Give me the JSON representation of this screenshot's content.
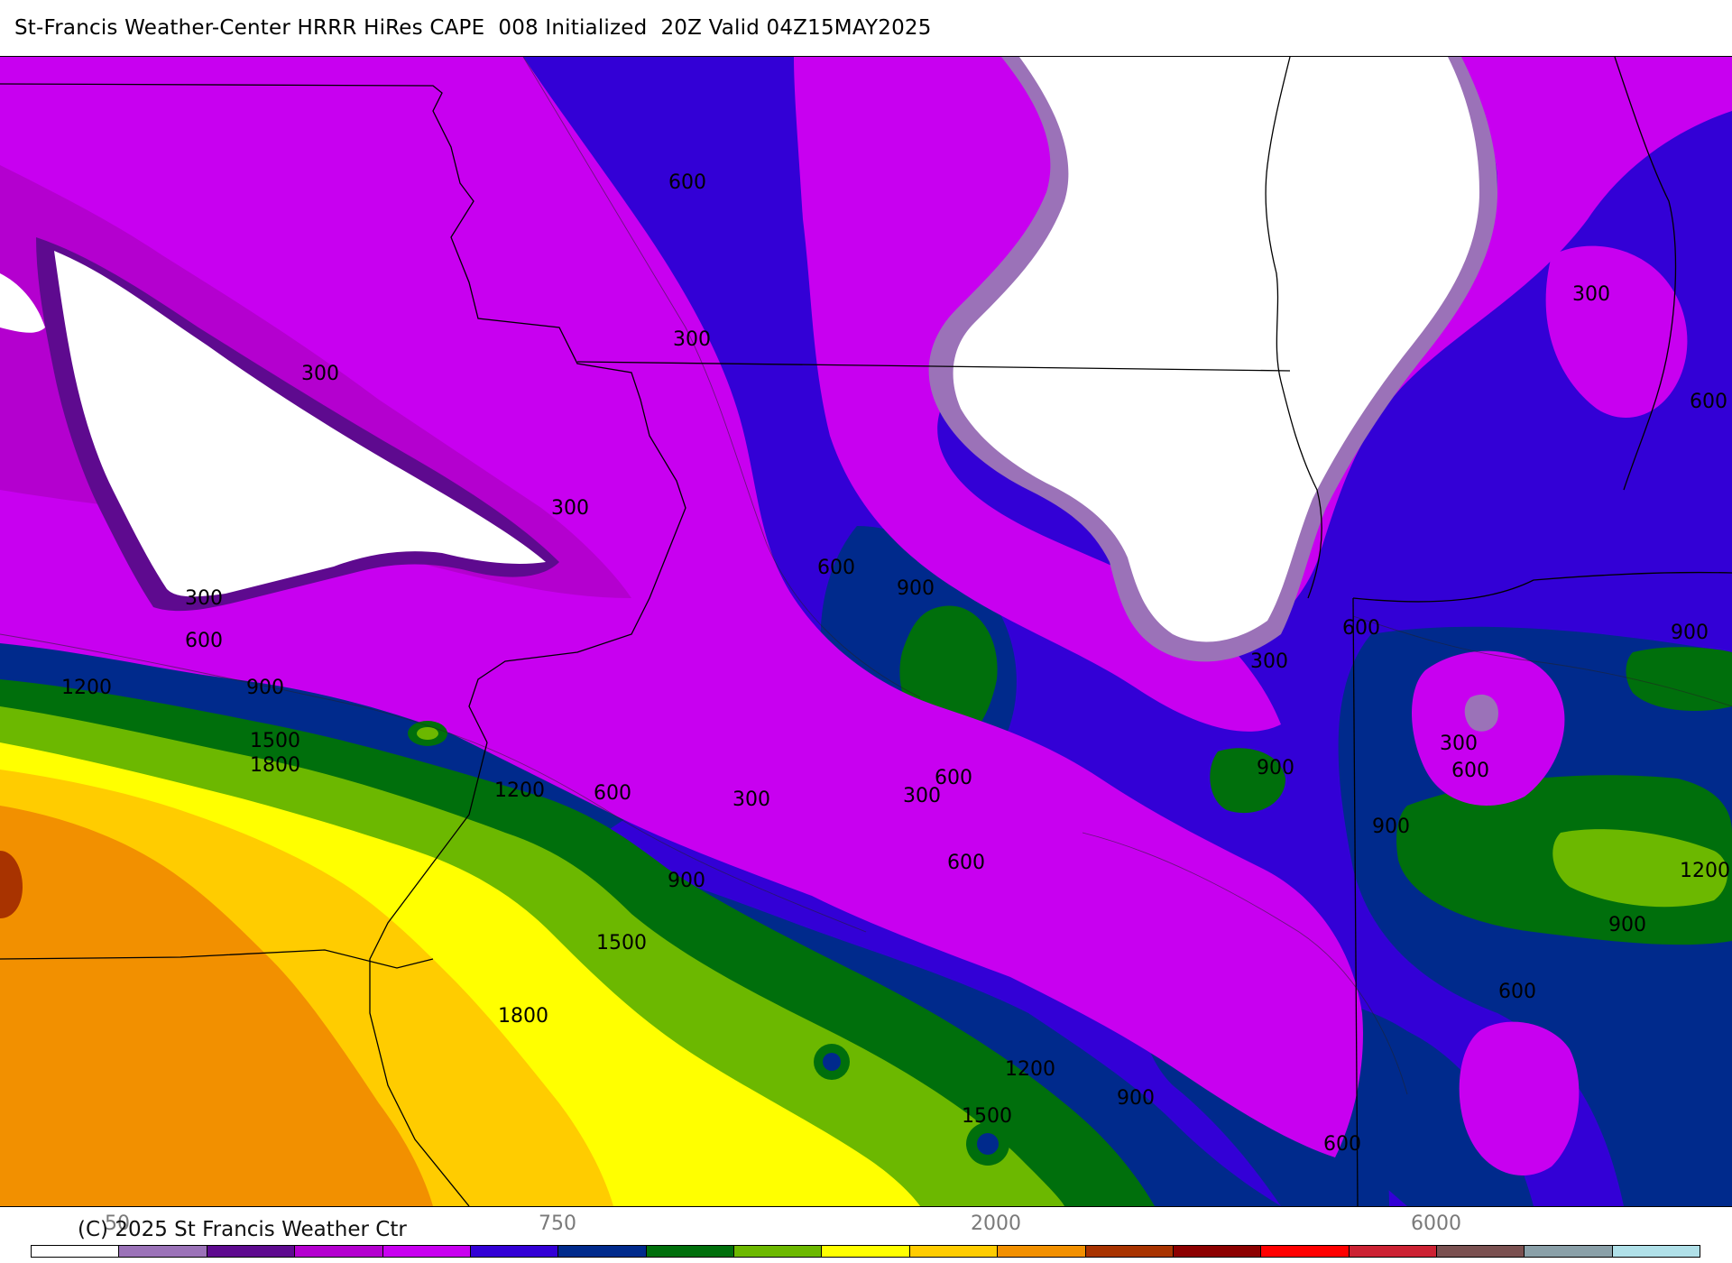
{
  "header": {
    "title": "St-Francis Weather-Center HRRR HiRes CAPE  008 Initialized  20Z Valid 04Z15MAY2025"
  },
  "footer": {
    "copyright": "(C) 2025 St Francis Weather Ctr"
  },
  "map": {
    "contour_labels": [
      {
        "text": "600"
      },
      {
        "text": "300"
      },
      {
        "text": "300"
      },
      {
        "text": "300"
      },
      {
        "text": "300"
      },
      {
        "text": "600"
      },
      {
        "text": "1200"
      },
      {
        "text": "900"
      },
      {
        "text": "1500"
      },
      {
        "text": "1800"
      },
      {
        "text": "1200"
      },
      {
        "text": "600"
      },
      {
        "text": "300"
      },
      {
        "text": "600"
      },
      {
        "text": "900"
      },
      {
        "text": "900"
      },
      {
        "text": "600"
      },
      {
        "text": "300"
      },
      {
        "text": "600"
      },
      {
        "text": "900"
      },
      {
        "text": "1500"
      },
      {
        "text": "1800"
      },
      {
        "text": "300"
      },
      {
        "text": "600"
      },
      {
        "text": "300"
      },
      {
        "text": "600"
      },
      {
        "text": "900"
      },
      {
        "text": "300"
      },
      {
        "text": "600"
      },
      {
        "text": "900"
      },
      {
        "text": "1200"
      },
      {
        "text": "900"
      },
      {
        "text": "600"
      },
      {
        "text": "1200"
      },
      {
        "text": "900"
      },
      {
        "text": "1500"
      },
      {
        "text": "600"
      }
    ]
  },
  "colorbar": {
    "tick_labels": [
      "50",
      "750",
      "2000",
      "6000"
    ],
    "colors": [
      "#ffffff",
      "#9b72b8",
      "#5e0a8f",
      "#b400cf",
      "#c800f0",
      "#3300d6",
      "#002a8c",
      "#006f0c",
      "#6cb800",
      "#ffff00",
      "#ffcc00",
      "#f29000",
      "#a83300",
      "#8c0000",
      "#ff0000",
      "#cc2233",
      "#7a5050",
      "#8aa0a8",
      "#b0e0e8"
    ]
  }
}
